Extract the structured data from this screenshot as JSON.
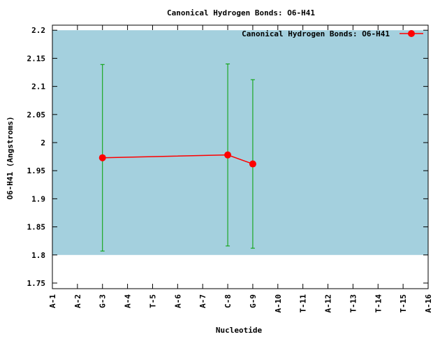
{
  "chart_data": {
    "type": "line",
    "title": "Canonical Hydrogen Bonds: O6-H41",
    "x_label": "Nucleotide",
    "y_label": "O6-H41 (Angstroms)",
    "categories": [
      "A-1",
      "A-2",
      "G-3",
      "A-4",
      "T-5",
      "A-6",
      "A-7",
      "C-8",
      "G-9",
      "A-10",
      "T-11",
      "A-12",
      "T-13",
      "T-14",
      "T-15",
      "A-16"
    ],
    "series": [
      {
        "name": "Canonical Hydrogen Bonds: O6-H41",
        "color": "#ff0000",
        "error_color": "#00a000",
        "x": [
          "G-3",
          "C-8",
          "G-9"
        ],
        "values": [
          1.973,
          1.978,
          1.962
        ],
        "errors": [
          0.166,
          0.162,
          0.15
        ]
      }
    ],
    "shaded_range": [
      1.8,
      2.2
    ],
    "shaded_color": "#a4d0de",
    "ylim": [
      1.74,
      2.209
    ],
    "yticks": [
      1.75,
      1.8,
      1.85,
      1.9,
      1.95,
      2,
      2.05,
      2.1,
      2.15,
      2.2
    ],
    "legend": "top-right"
  }
}
